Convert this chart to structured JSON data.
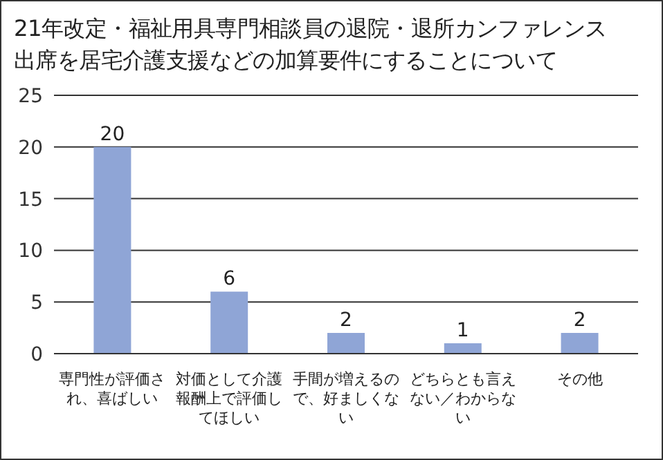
{
  "chart_data": {
    "type": "bar",
    "title": "21年改定・福祉用具専門相談員の退院・退所カンファレンス出席を居宅介護支援などの加算要件にすることについて",
    "categories": [
      "専門性が評価され、喜ばしい",
      "対価として介護報酬上で評価してほしい",
      "手間が増えるので、好ましくない",
      "どちらとも言えない／わからない",
      "その他"
    ],
    "values": [
      20,
      6,
      2,
      1,
      2
    ],
    "color": "#8fa5d6",
    "ylim": [
      0,
      25
    ],
    "yticks": [
      0,
      5,
      10,
      15,
      20,
      25
    ],
    "grid": "y",
    "data_labels": true
  }
}
